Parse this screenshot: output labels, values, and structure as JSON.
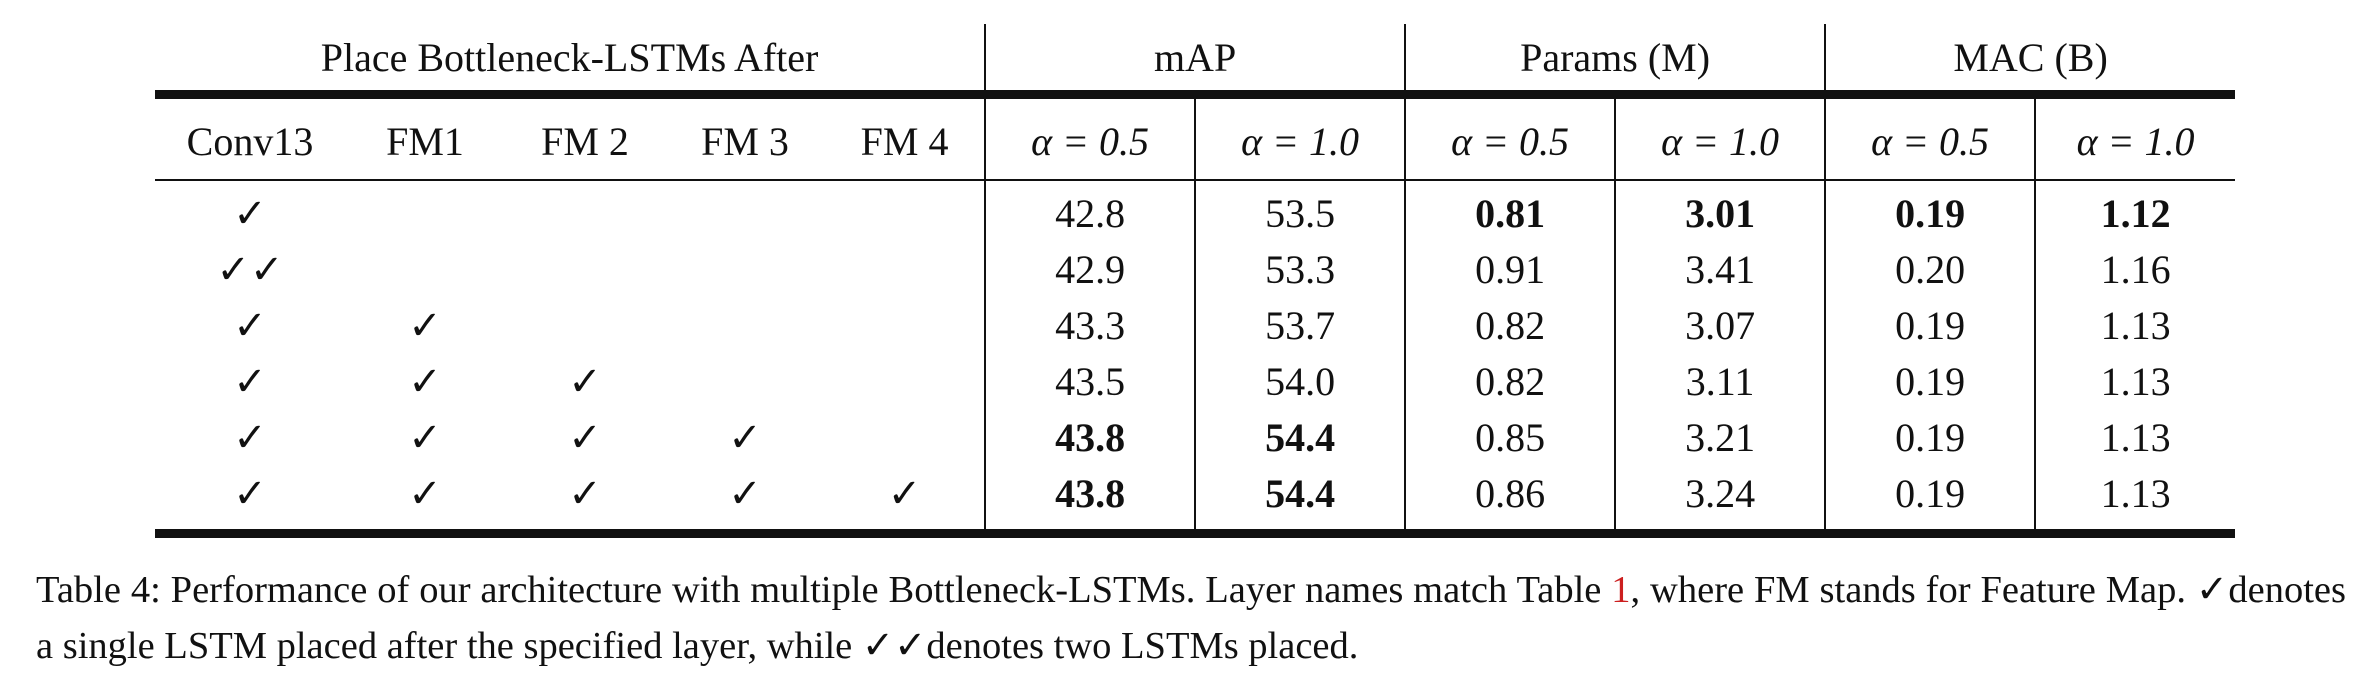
{
  "table": {
    "groups": [
      {
        "label": "Place Bottleneck-LSTMs After",
        "span": 5
      },
      {
        "label": "mAP",
        "span": 2
      },
      {
        "label": "Params (M)",
        "span": 2
      },
      {
        "label": "MAC (B)",
        "span": 2
      }
    ],
    "columns": [
      "Conv13",
      "FM1",
      "FM 2",
      "FM 3",
      "FM 4",
      "α = 0.5",
      "α = 1.0",
      "α = 0.5",
      "α = 1.0",
      "α = 0.5",
      "α = 1.0"
    ],
    "rows": [
      {
        "marks": [
          "✓",
          "",
          "",
          "",
          ""
        ],
        "values": [
          "42.8",
          "53.5",
          "0.81",
          "3.01",
          "0.19",
          "1.12"
        ],
        "bold": [
          false,
          false,
          true,
          true,
          true,
          true
        ]
      },
      {
        "marks": [
          "✓✓",
          "",
          "",
          "",
          ""
        ],
        "values": [
          "42.9",
          "53.3",
          "0.91",
          "3.41",
          "0.20",
          "1.16"
        ],
        "bold": [
          false,
          false,
          false,
          false,
          false,
          false
        ]
      },
      {
        "marks": [
          "✓",
          "✓",
          "",
          "",
          ""
        ],
        "values": [
          "43.3",
          "53.7",
          "0.82",
          "3.07",
          "0.19",
          "1.13"
        ],
        "bold": [
          false,
          false,
          false,
          false,
          false,
          false
        ]
      },
      {
        "marks": [
          "✓",
          "✓",
          "✓",
          "",
          ""
        ],
        "values": [
          "43.5",
          "54.0",
          "0.82",
          "3.11",
          "0.19",
          "1.13"
        ],
        "bold": [
          false,
          false,
          false,
          false,
          false,
          false
        ]
      },
      {
        "marks": [
          "✓",
          "✓",
          "✓",
          "✓",
          ""
        ],
        "values": [
          "43.8",
          "54.4",
          "0.85",
          "3.21",
          "0.19",
          "1.13"
        ],
        "bold": [
          true,
          true,
          false,
          false,
          false,
          false
        ]
      },
      {
        "marks": [
          "✓",
          "✓",
          "✓",
          "✓",
          "✓"
        ],
        "values": [
          "43.8",
          "54.4",
          "0.86",
          "3.24",
          "0.19",
          "1.13"
        ],
        "bold": [
          true,
          true,
          false,
          false,
          false,
          false
        ]
      }
    ]
  },
  "caption": {
    "part1": "Table 4: Performance of our architecture with multiple Bottleneck-LSTMs. Layer names match Table ",
    "ref": "1",
    "part2": ", where FM stands for Feature Map. ✓denotes a single LSTM placed after the specified layer, while ✓✓denotes two LSTMs placed."
  }
}
